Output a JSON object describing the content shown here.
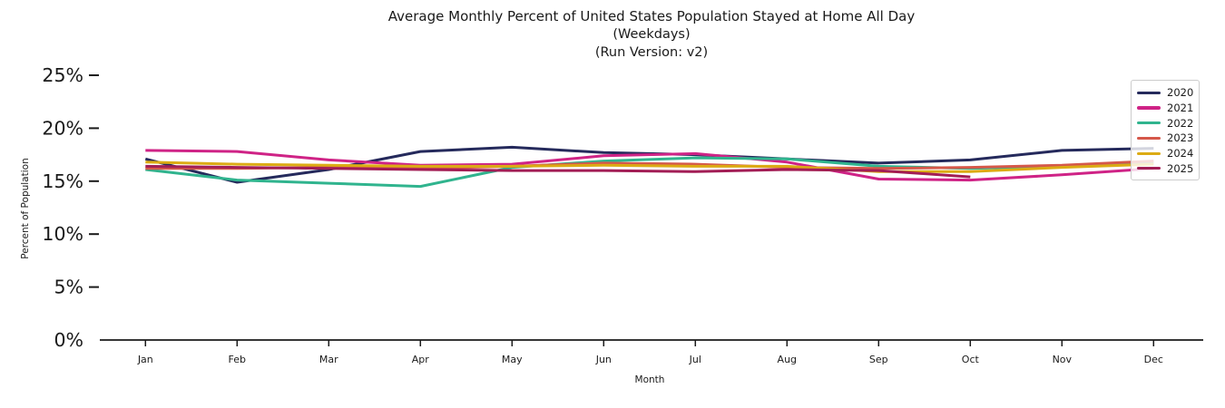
{
  "chart_data": {
    "type": "line",
    "title": "Average Monthly Percent of United States Population Stayed at Home All Day",
    "subtitle": "(Weekdays)",
    "subtitle2": "(Run Version: v2)",
    "xlabel": "Month",
    "ylabel": "Percent of Population",
    "categories": [
      "Jan",
      "Feb",
      "Mar",
      "Apr",
      "May",
      "Jun",
      "Jul",
      "Aug",
      "Sep",
      "Oct",
      "Nov",
      "Dec"
    ],
    "yticks": {
      "values": [
        0,
        5,
        10,
        15,
        20,
        25
      ],
      "labels": [
        "0%",
        "5%",
        "10%",
        "15%",
        "20%",
        "25%"
      ]
    },
    "ylim": [
      0,
      26.5
    ],
    "grid": false,
    "legend_position": "upper right",
    "axis_color": "#1a1a1a",
    "series": [
      {
        "name": "2020",
        "color": "#252a5c",
        "values": [
          17.1,
          14.9,
          16.1,
          17.8,
          18.2,
          17.7,
          17.5,
          17.1,
          16.7,
          17.0,
          17.9,
          18.1
        ]
      },
      {
        "name": "2021",
        "color": "#cf2386",
        "values": [
          17.9,
          17.8,
          17.0,
          16.5,
          16.6,
          17.4,
          17.6,
          16.8,
          15.2,
          15.1,
          15.6,
          16.2
        ]
      },
      {
        "name": "2022",
        "color": "#30b48e",
        "values": [
          16.1,
          15.1,
          14.8,
          14.5,
          16.3,
          16.9,
          17.2,
          17.1,
          16.4,
          16.2,
          16.4,
          16.7
        ]
      },
      {
        "name": "2023",
        "color": "#d5584a",
        "values": [
          16.2,
          16.2,
          16.3,
          16.2,
          16.4,
          16.7,
          16.6,
          16.3,
          16.2,
          16.3,
          16.5,
          16.9
        ]
      },
      {
        "name": "2024",
        "color": "#dcab14",
        "values": [
          16.8,
          16.6,
          16.5,
          16.4,
          16.4,
          16.5,
          16.4,
          16.4,
          15.9,
          15.9,
          16.3,
          16.6
        ]
      },
      {
        "name": "2025",
        "color": "#a21d55",
        "values": [
          16.4,
          16.3,
          16.2,
          16.1,
          16.0,
          16.0,
          15.9,
          16.1,
          16.0,
          15.4,
          null,
          null
        ]
      }
    ]
  }
}
